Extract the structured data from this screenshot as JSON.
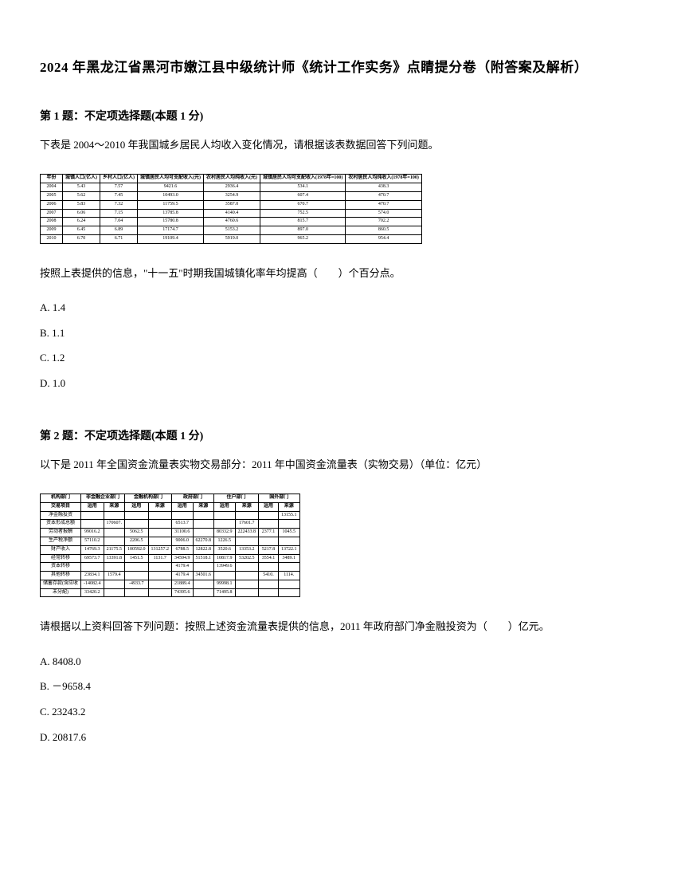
{
  "title": "2024 年黑龙江省黑河市嫩江县中级统计师《统计工作实务》点睛提分卷（附答案及解析）",
  "q1": {
    "header": "第 1 题：不定项选择题(本题 1 分)",
    "text": "下表是 2004～2010 年我国城乡居民人均收入变化情况，请根据该表数据回答下列问题。",
    "subtext": "按照上表提供的信息，\"十一五\"时期我国城镇化率年均提高（　　）个百分点。",
    "options": {
      "a": "A. 1.4",
      "b": "B. 1.1",
      "c": "C. 1.2",
      "d": "D. 1.0"
    },
    "table": {
      "headers": [
        "年份",
        "城镇人口(亿人)",
        "乡村人口(亿人)",
        "城镇居民人均可支配收入(元)",
        "农村居民人均纯收入(元)",
        "城镇居民人均可支配收入(1978年=100)",
        "农村居民人均纯收入(1978年=100)"
      ],
      "rows": [
        [
          "2004",
          "5.43",
          "7.57",
          "9421.6",
          "2936.4",
          "534.1",
          "438.3"
        ],
        [
          "2005",
          "5.62",
          "7.45",
          "10493.0",
          "3254.9",
          "607.4",
          "470.7"
        ],
        [
          "2006",
          "5.83",
          "7.32",
          "11759.5",
          "3587.0",
          "670.7",
          "470.7"
        ],
        [
          "2007",
          "6.06",
          "7.15",
          "13785.8",
          "4140.4",
          "752.5",
          "574.0"
        ],
        [
          "2008",
          "6.24",
          "7.04",
          "15780.8",
          "4760.6",
          "815.7",
          "702.2"
        ],
        [
          "2009",
          "6.45",
          "6.89",
          "17174.7",
          "5153.2",
          "897.0",
          "860.5"
        ],
        [
          "2010",
          "6.70",
          "6.71",
          "19109.4",
          "5919.0",
          "965.2",
          "954.4"
        ]
      ]
    }
  },
  "q2": {
    "header": "第 2 题：不定项选择题(本题 1 分)",
    "text": "以下是 2011 年全国资金流量表实物交易部分：2011 年中国资金流量表（实物交易）（单位：亿元）",
    "subtext": "请根据以上资料回答下列问题：按照上述资金流量表提供的信息，2011 年政府部门净金融投资为（　　）亿元。",
    "options": {
      "a": "A. 8408.0",
      "b": "B. －9658.4",
      "c": "C. 23243.2",
      "d": "D. 20817.6"
    },
    "table": {
      "headers": [
        "机构部门",
        "非金融企业部门",
        "",
        "金融机构部门",
        "",
        "政府部门",
        "",
        "住户部门",
        "",
        "国外部门",
        ""
      ],
      "subheaders": [
        "交易项目",
        "运用",
        "来源",
        "运用",
        "来源",
        "运用",
        "来源",
        "运用",
        "来源",
        "运用",
        "来源"
      ],
      "rows": [
        [
          "净金融投资",
          "",
          "",
          "",
          "",
          "",
          "",
          "",
          "",
          "",
          "13155.1"
        ],
        [
          "资本形成总额",
          "",
          "170607.",
          "",
          "",
          "6513.7",
          "",
          "",
          "17601.7",
          "",
          ""
        ],
        [
          "劳动者报酬",
          "99016.2",
          "",
          "5062.5",
          "",
          "31100.6",
          "",
          "80332.9",
          "222433.8",
          "2377.1",
          "1045.5"
        ],
        [
          "生产税净额",
          "57110.2",
          "",
          "2206.5",
          "",
          "9006.0",
          "62270.8",
          "1226.5",
          "",
          "",
          ""
        ],
        [
          "财产收入",
          "14769.3",
          "21175.5",
          "100592.0",
          "131257.2",
          "6788.5",
          "12822.8",
          "3520.6",
          "13353.2",
          "5217.8",
          "13722.1"
        ],
        [
          "经常转移",
          "69573.7",
          "13391.8",
          "1451.5",
          "1131.7",
          "34594.9",
          "51518.1",
          "10817.9",
          "53202.5",
          "3554.1",
          "3489.1"
        ],
        [
          "资本转移",
          "",
          "",
          "",
          "",
          "4179.4",
          "",
          "13949.6",
          "",
          "",
          ""
        ],
        [
          "其他转移",
          "23834.1",
          "1579.4",
          "",
          "",
          "4179.4",
          "34501.6",
          "",
          "",
          "5410.",
          "1114."
        ],
        [
          "储蓄存款(含应收",
          "-14082.4",
          "",
          "-4933.7",
          "",
          "21889.4",
          "",
          "99998.1",
          "",
          "",
          ""
        ],
        [
          "未分配)",
          "33420.2",
          "",
          "",
          "",
          "74395.6",
          "",
          "71495.8",
          "",
          "",
          ""
        ]
      ]
    }
  }
}
